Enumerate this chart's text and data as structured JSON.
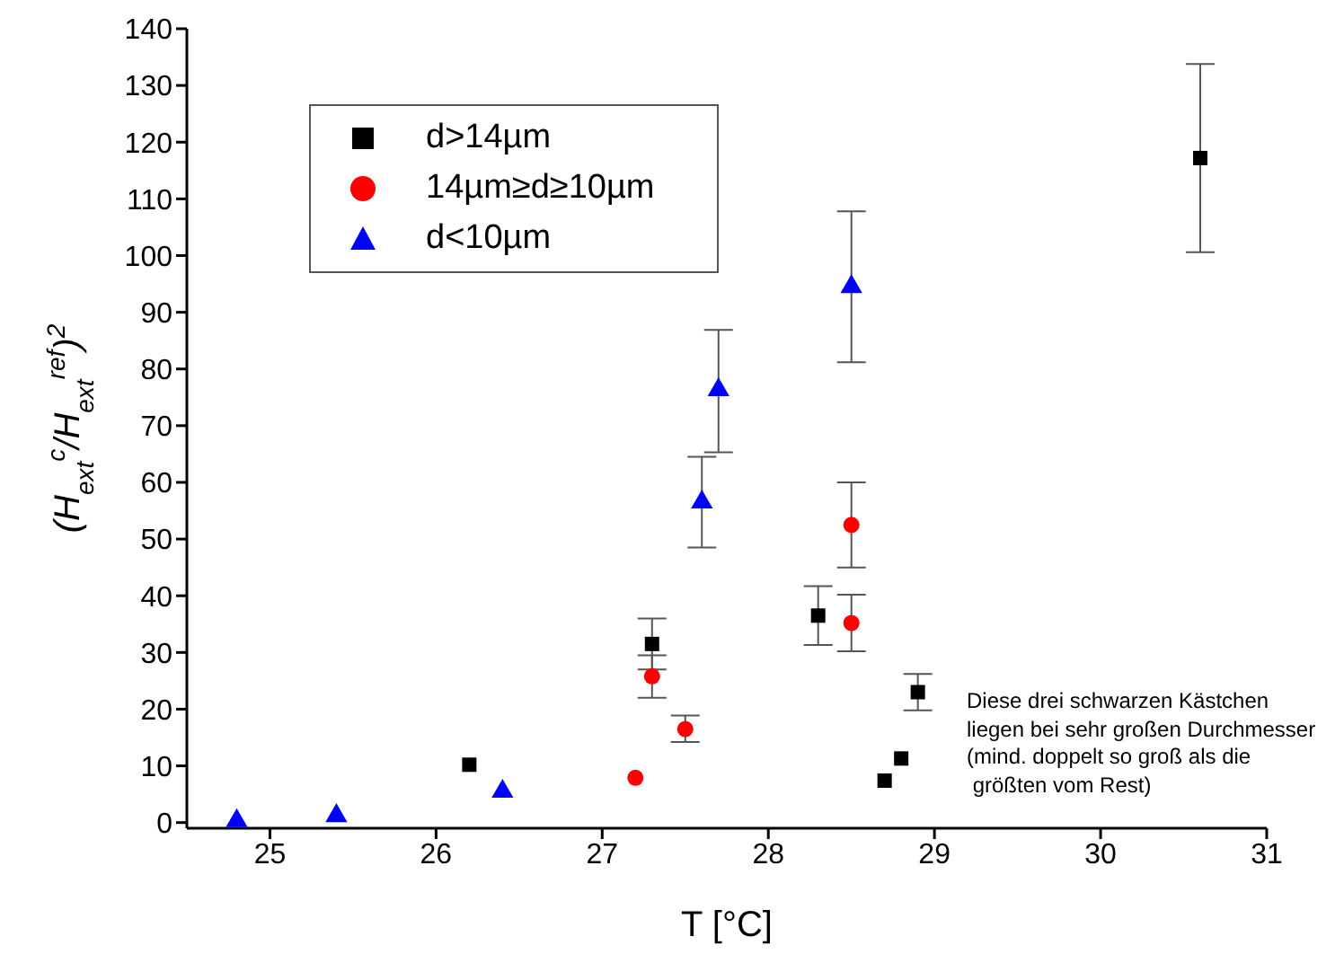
{
  "chart_data": {
    "type": "scatter",
    "xlabel": "T [°C]",
    "ylabel": "(H$_{ext}$$^{c}$/H$_{ext}$$^{ref}$)$^{2}$",
    "xlim": [
      24.5,
      31
    ],
    "xticks": [
      25,
      26,
      27,
      28,
      29,
      30,
      31
    ],
    "ylim": [
      -1,
      140
    ],
    "yticks": [
      0,
      10,
      20,
      30,
      40,
      50,
      60,
      70,
      80,
      90,
      100,
      110,
      120,
      130,
      140
    ],
    "grid": false,
    "legend": "top left",
    "series": [
      {
        "name": "d>14µm",
        "color": "#000000",
        "marker": "square",
        "x": [
          26.2,
          27.3,
          28.3,
          28.7,
          28.8,
          28.9,
          30.6
        ],
        "values": [
          10.2,
          31.5,
          36.5,
          7.4,
          11.3,
          23,
          117.2
        ],
        "errors": [
          null,
          [
            27,
            36
          ],
          [
            31.3,
            41.7
          ],
          null,
          null,
          [
            19.8,
            26.2
          ],
          [
            100.6,
            133.8
          ]
        ]
      },
      {
        "name": "14µm≥d≥10µm",
        "color": "#ff0000",
        "marker": "circle",
        "x": [
          27.2,
          27.3,
          27.5,
          28.5,
          28.5
        ],
        "values": [
          7.9,
          25.8,
          16.5,
          52.5,
          35.2
        ],
        "errors": [
          null,
          [
            22,
            29.5
          ],
          [
            14.2,
            18.9
          ],
          [
            45,
            60
          ],
          [
            30.2,
            40.2
          ]
        ]
      },
      {
        "name": "d<10µm",
        "color": "#0000ff",
        "marker": "triangle",
        "x": [
          24.8,
          25.4,
          26.4,
          27.6,
          27.7,
          28.5
        ],
        "values": [
          0.3,
          1.2,
          5.5,
          56.5,
          76.3,
          94.5
        ],
        "errors": [
          null,
          null,
          null,
          [
            48.5,
            64.5
          ],
          [
            65.3,
            86.9
          ],
          [
            81.2,
            107.8
          ]
        ]
      }
    ],
    "annotations": [
      "Diese drei schwarzen Kästchen\nliegen bei sehr großen Durchmesser\n(mind. doppelt so groß als die\n größten vom Rest)"
    ]
  }
}
